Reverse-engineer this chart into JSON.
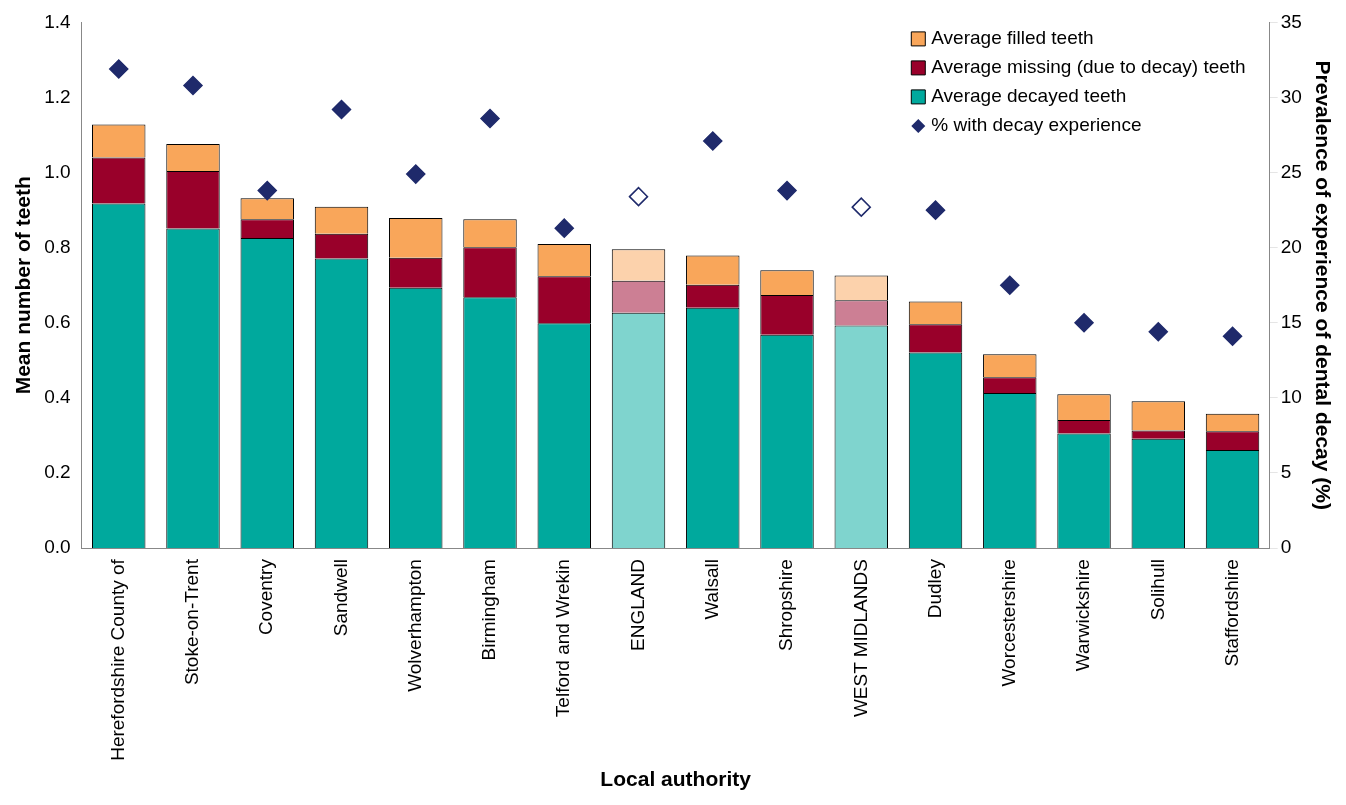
{
  "chart_data": {
    "type": "bar",
    "stacked": true,
    "xlabel": "Local authority",
    "ylabel": "Mean number of teeth",
    "y2label": "Prevalence of experience of dental decay (%)",
    "categories": [
      "Herefordshire County of",
      "Stoke-on-Trent",
      "Coventry",
      "Sandwell",
      "Wolverhampton",
      "Birmingham",
      "Telford and Wrekin",
      "ENGLAND",
      "Walsall",
      "Shropshire",
      "WEST MIDLANDS",
      "Dudley",
      "Worcestershire",
      "Warwickshire",
      "Solihull",
      "Staffordshire"
    ],
    "series": [
      {
        "name": "Average decayed teeth",
        "color": "#00a99d",
        "colors": [
          "#00a99d",
          "#00a99d",
          "#00a99d",
          "#00a99d",
          "#00a99d",
          "#00a99d",
          "#00a99d",
          "#7fd4ce",
          "#00a99d",
          "#00a99d",
          "#7fd4ce",
          "#00a99d",
          "#00a99d",
          "#00a99d",
          "#00a99d",
          "#00a99d"
        ],
        "values": [
          0.918,
          0.851,
          0.826,
          0.771,
          0.693,
          0.668,
          0.599,
          0.627,
          0.64,
          0.568,
          0.593,
          0.521,
          0.413,
          0.305,
          0.291,
          0.261
        ]
      },
      {
        "name": "Average missing (due to decay) teeth",
        "color": "#99002a",
        "colors": [
          "#99002a",
          "#99002a",
          "#99002a",
          "#99002a",
          "#99002a",
          "#99002a",
          "#99002a",
          "#cc7f94",
          "#99002a",
          "#99002a",
          "#cc7f94",
          "#99002a",
          "#99002a",
          "#99002a",
          "#99002a",
          "#99002a"
        ],
        "values": [
          0.122,
          0.153,
          0.05,
          0.066,
          0.08,
          0.133,
          0.125,
          0.085,
          0.061,
          0.106,
          0.067,
          0.075,
          0.042,
          0.036,
          0.022,
          0.05
        ]
      },
      {
        "name": "Average filled teeth",
        "color": "#f9a65a",
        "colors": [
          "#f9a65a",
          "#f9a65a",
          "#f9a65a",
          "#f9a65a",
          "#f9a65a",
          "#f9a65a",
          "#f9a65a",
          "#fcd2ac",
          "#f9a65a",
          "#f9a65a",
          "#fcd2ac",
          "#f9a65a",
          "#f9a65a",
          "#f9a65a",
          "#f9a65a",
          "#f9a65a"
        ],
        "values": [
          0.088,
          0.072,
          0.056,
          0.072,
          0.106,
          0.075,
          0.086,
          0.084,
          0.078,
          0.066,
          0.066,
          0.061,
          0.061,
          0.069,
          0.078,
          0.047
        ]
      },
      {
        "name": "% with decay experience",
        "type": "scatter",
        "axis": "y2",
        "marker": "diamond",
        "color": "#1f2a6b",
        "colors": [
          "#1f2a6b",
          "#1f2a6b",
          "#1f2a6b",
          "#1f2a6b",
          "#1f2a6b",
          "#1f2a6b",
          "#1f2a6b",
          "#ffffff",
          "#1f2a6b",
          "#1f2a6b",
          "#ffffff",
          "#1f2a6b",
          "#1f2a6b",
          "#1f2a6b",
          "#1f2a6b",
          "#1f2a6b"
        ],
        "values": [
          31.9,
          30.8,
          23.8,
          29.2,
          24.9,
          28.6,
          21.3,
          23.4,
          27.1,
          23.8,
          22.7,
          22.5,
          17.5,
          15.0,
          14.4,
          14.1
        ]
      }
    ],
    "ylim": [
      0,
      1.4
    ],
    "yticks": [
      {
        "value": 0,
        "label": "0.0"
      },
      {
        "value": 0.2,
        "label": "0.2"
      },
      {
        "value": 0.4,
        "label": "0.4"
      },
      {
        "value": 0.6,
        "label": "0.6"
      },
      {
        "value": 0.8,
        "label": "0.8"
      },
      {
        "value": 1,
        "label": "1.0"
      },
      {
        "value": 1.2,
        "label": "1.2"
      },
      {
        "value": 1.4,
        "label": "1.4"
      }
    ],
    "y2lim": [
      0,
      35
    ],
    "y2ticks": [
      0,
      5,
      10,
      15,
      20,
      25,
      30,
      35
    ],
    "grid": false,
    "legend": "top right"
  }
}
